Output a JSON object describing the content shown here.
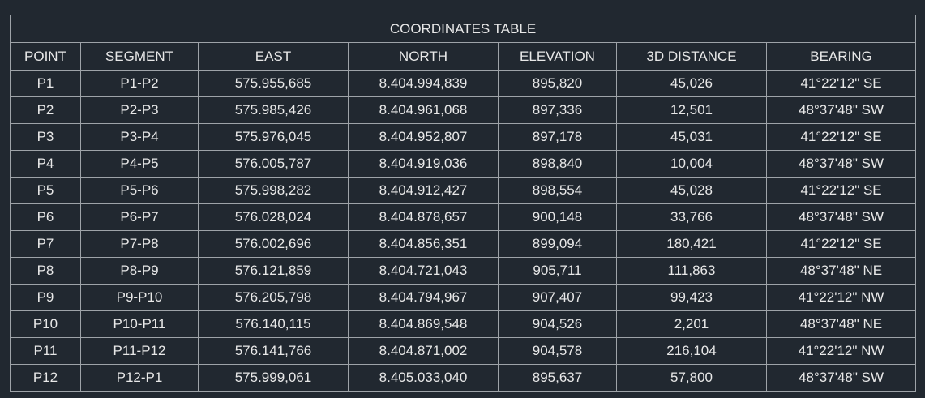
{
  "table": {
    "title": "COORDINATES TABLE",
    "columns": [
      "POINT",
      "SEGMENT",
      "EAST",
      "NORTH",
      "ELEVATION",
      "3D DISTANCE",
      "BEARING"
    ],
    "rows": [
      [
        "P1",
        "P1-P2",
        "575.955,685",
        "8.404.994,839",
        "895,820",
        "45,026",
        "41°22'12\" SE"
      ],
      [
        "P2",
        "P2-P3",
        "575.985,426",
        "8.404.961,068",
        "897,336",
        "12,501",
        "48°37'48\" SW"
      ],
      [
        "P3",
        "P3-P4",
        "575.976,045",
        "8.404.952,807",
        "897,178",
        "45,031",
        "41°22'12\" SE"
      ],
      [
        "P4",
        "P4-P5",
        "576.005,787",
        "8.404.919,036",
        "898,840",
        "10,004",
        "48°37'48\" SW"
      ],
      [
        "P5",
        "P5-P6",
        "575.998,282",
        "8.404.912,427",
        "898,554",
        "45,028",
        "41°22'12\" SE"
      ],
      [
        "P6",
        "P6-P7",
        "576.028,024",
        "8.404.878,657",
        "900,148",
        "33,766",
        "48°37'48\" SW"
      ],
      [
        "P7",
        "P7-P8",
        "576.002,696",
        "8.404.856,351",
        "899,094",
        "180,421",
        "41°22'12\" SE"
      ],
      [
        "P8",
        "P8-P9",
        "576.121,859",
        "8.404.721,043",
        "905,711",
        "111,863",
        "48°37'48\" NE"
      ],
      [
        "P9",
        "P9-P10",
        "576.205,798",
        "8.404.794,967",
        "907,407",
        "99,423",
        "41°22'12\" NW"
      ],
      [
        "P10",
        "P10-P11",
        "576.140,115",
        "8.404.869,548",
        "904,526",
        "2,201",
        "48°37'48\" NE"
      ],
      [
        "P11",
        "P11-P12",
        "576.141,766",
        "8.404.871,002",
        "904,578",
        "216,104",
        "41°22'12\" NW"
      ],
      [
        "P12",
        "P12-P1",
        "575.999,061",
        "8.405.033,040",
        "895,637",
        "57,800",
        "48°37'48\" SW"
      ]
    ]
  }
}
